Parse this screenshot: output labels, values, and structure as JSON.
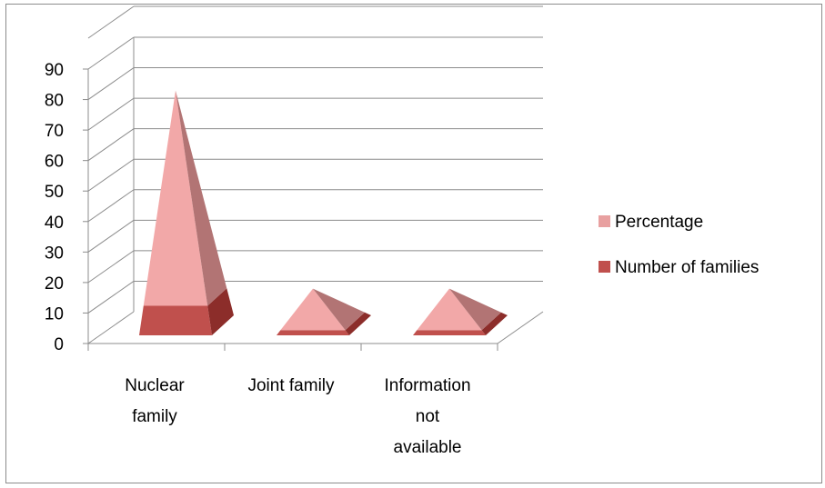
{
  "chart_data": {
    "type": "bar",
    "shape": "pyramid-3d",
    "stacked": true,
    "categories": [
      [
        "Nuclear",
        "family"
      ],
      [
        "Joint family"
      ],
      [
        "Information",
        "not",
        "available"
      ]
    ],
    "series": [
      {
        "name": "Number of families",
        "values": [
          10,
          2,
          2
        ],
        "color": "#c0504d"
      },
      {
        "name": "Percentage",
        "values": [
          73,
          16,
          16
        ],
        "color": "#f2a8a8"
      }
    ],
    "ylim": [
      0,
      90
    ],
    "yticks": [
      "0",
      "10",
      "20",
      "30",
      "40",
      "50",
      "60",
      "70",
      "80",
      "90"
    ],
    "grid": true,
    "legend_position": "right"
  },
  "legend": [
    {
      "label": "Percentage",
      "color": "#e8a0a0"
    },
    {
      "label": "Number of families",
      "color": "#c0504d"
    }
  ]
}
